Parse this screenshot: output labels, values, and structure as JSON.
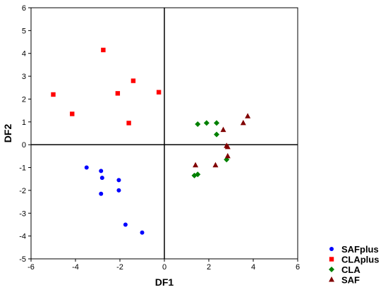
{
  "chart_data": {
    "type": "scatter",
    "xlabel": "DF1",
    "ylabel": "DF2",
    "xlim": [
      -6,
      6
    ],
    "ylim": [
      -5,
      6
    ],
    "x_ticks": [
      -6,
      -4,
      -2,
      0,
      2,
      4,
      6
    ],
    "y_ticks": [
      -5,
      -4,
      -3,
      -2,
      -1,
      0,
      1,
      2,
      3,
      4,
      5,
      6
    ],
    "grid": false,
    "zero_lines": true,
    "legend_position": "bottom-right",
    "series": [
      {
        "name": "SAFplus",
        "marker": "circle",
        "color": "#0000ff",
        "points": [
          [
            -3.5,
            -1.0
          ],
          [
            -2.85,
            -1.15
          ],
          [
            -2.8,
            -1.45
          ],
          [
            -2.85,
            -2.15
          ],
          [
            -2.05,
            -1.55
          ],
          [
            -2.05,
            -2.0
          ],
          [
            -1.75,
            -3.5
          ],
          [
            -1.0,
            -3.85
          ]
        ]
      },
      {
        "name": "CLAplus",
        "marker": "square",
        "color": "#ff0000",
        "points": [
          [
            -5.0,
            2.2
          ],
          [
            -4.15,
            1.35
          ],
          [
            -2.75,
            4.15
          ],
          [
            -2.1,
            2.25
          ],
          [
            -1.4,
            2.8
          ],
          [
            -1.6,
            0.95
          ],
          [
            -0.25,
            2.3
          ]
        ]
      },
      {
        "name": "CLA",
        "marker": "diamond",
        "color": "#008000",
        "points": [
          [
            1.5,
            0.9
          ],
          [
            1.9,
            0.95
          ],
          [
            2.35,
            0.95
          ],
          [
            2.35,
            0.45
          ],
          [
            1.35,
            -1.35
          ],
          [
            1.5,
            -1.3
          ],
          [
            2.8,
            -0.65
          ]
        ]
      },
      {
        "name": "SAF",
        "marker": "triangle",
        "color": "#800000",
        "points": [
          [
            3.75,
            1.25
          ],
          [
            3.55,
            0.95
          ],
          [
            2.65,
            0.65
          ],
          [
            2.8,
            -0.05
          ],
          [
            2.85,
            -0.1
          ],
          [
            2.85,
            -0.5
          ],
          [
            1.4,
            -0.9
          ],
          [
            2.3,
            -0.9
          ]
        ]
      }
    ]
  }
}
